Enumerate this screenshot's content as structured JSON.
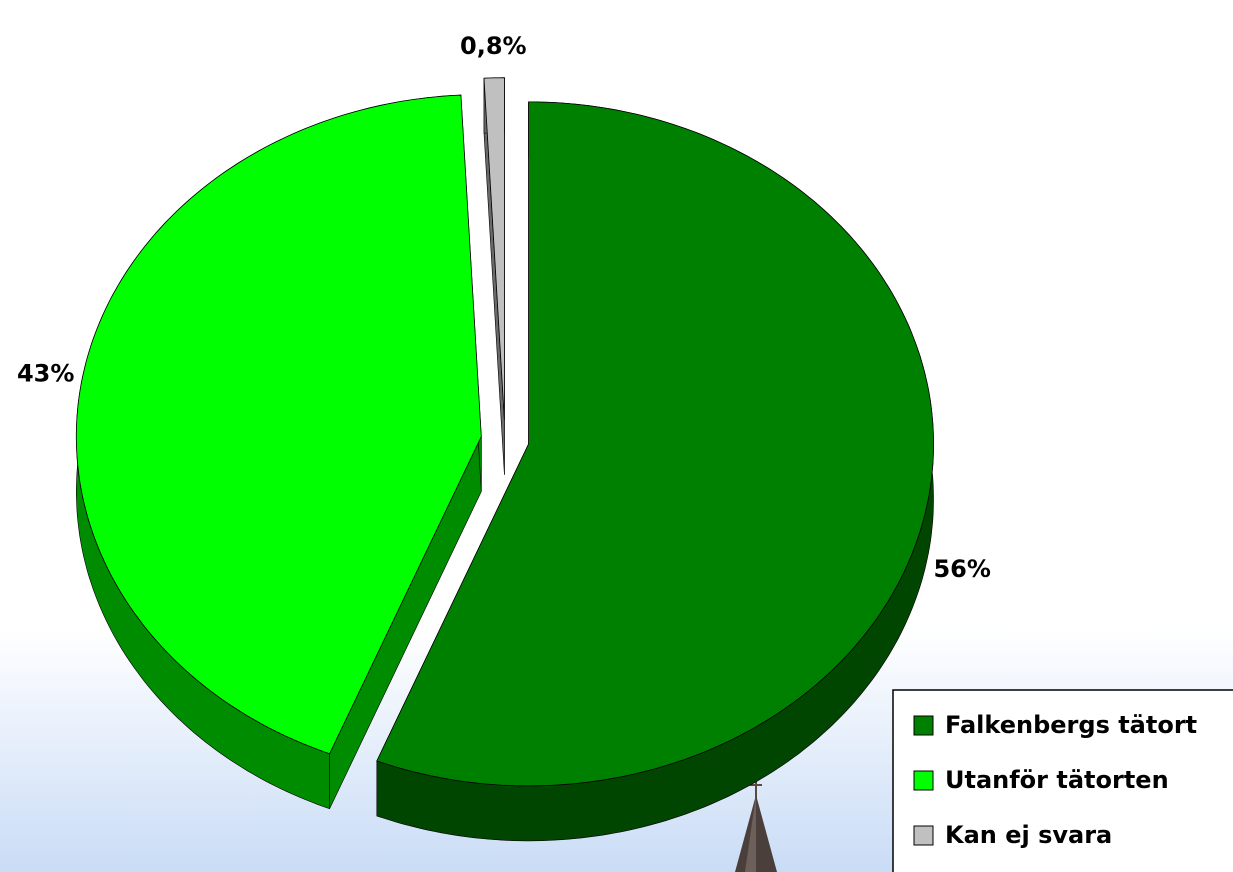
{
  "chart_data": {
    "type": "pie",
    "categories": [
      "Falkenbergs tätort",
      "Utanför tätorten",
      "Kan ej svara"
    ],
    "values": [
      56,
      43,
      0.8
    ],
    "value_labels": [
      "56%",
      "43%",
      "0,8%"
    ],
    "colors": [
      "#008000",
      "#00ff00",
      "#c0c0c0"
    ],
    "legend": "bottom-right",
    "exploded": true,
    "three_d": true
  }
}
